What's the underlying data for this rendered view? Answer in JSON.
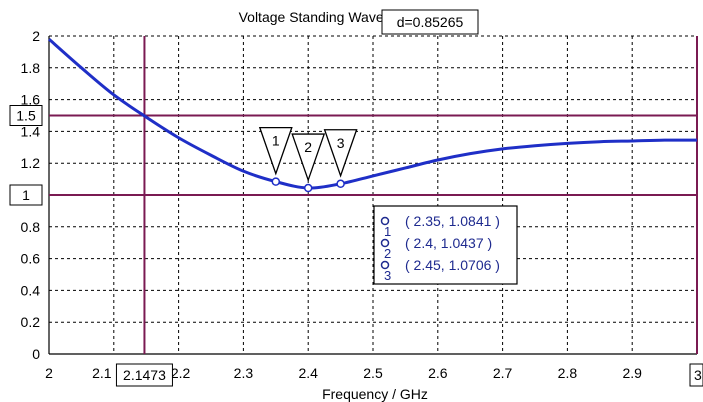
{
  "chart_data": {
    "type": "line",
    "title": "Voltage Standing Wave Ratio (VSWR)",
    "xlabel": "Frequency / GHz",
    "ylabel": "",
    "xlim": [
      2,
      3
    ],
    "ylim": [
      0,
      2
    ],
    "x_ticks": [
      "2",
      "2.1",
      "2.2",
      "2.3",
      "2.4",
      "2.5",
      "2.6",
      "2.7",
      "2.8",
      "2.9",
      "3"
    ],
    "y_ticks": [
      "0",
      "0.2",
      "0.4",
      "0.6",
      "0.8",
      "1",
      "1.2",
      "1.4",
      "1.6",
      "1.8",
      "2"
    ],
    "grid": true,
    "series": [
      {
        "name": "",
        "color": "#1f2fc7",
        "x": [
          2.0,
          2.05,
          2.1,
          2.15,
          2.2,
          2.25,
          2.3,
          2.35,
          2.4,
          2.45,
          2.5,
          2.55,
          2.6,
          2.65,
          2.7,
          2.75,
          2.8,
          2.85,
          2.9,
          2.95,
          3.0
        ],
        "y": [
          1.98,
          1.8,
          1.63,
          1.49,
          1.36,
          1.25,
          1.15,
          1.0841,
          1.0437,
          1.0706,
          1.12,
          1.17,
          1.22,
          1.26,
          1.29,
          1.31,
          1.325,
          1.335,
          1.34,
          1.345,
          1.345
        ]
      }
    ],
    "reference_lines": {
      "color": "#7a1a52",
      "vertical_x": 2.1473,
      "vertical_label": "2.1473",
      "horizontal": [
        {
          "y": 1.5,
          "label": "1.5"
        },
        {
          "y": 1.0,
          "label": "1"
        }
      ],
      "right_edge_label": "3"
    },
    "markers": [
      {
        "id": "1",
        "x": 2.35,
        "y": 1.0841,
        "text": "( 2.35, 1.0841 )"
      },
      {
        "id": "2",
        "x": 2.4,
        "y": 1.0437,
        "text": "( 2.4, 1.0437 )"
      },
      {
        "id": "3",
        "x": 2.45,
        "y": 1.0706,
        "text": "( 2.45, 1.0706 )"
      }
    ],
    "delta_readout": "d=0.85265",
    "colors": {
      "curve": "#1f2fc7",
      "reference": "#7a1a52",
      "legend_text": "#1e2a8f",
      "grid": "#000000",
      "axis": "#000000"
    }
  }
}
